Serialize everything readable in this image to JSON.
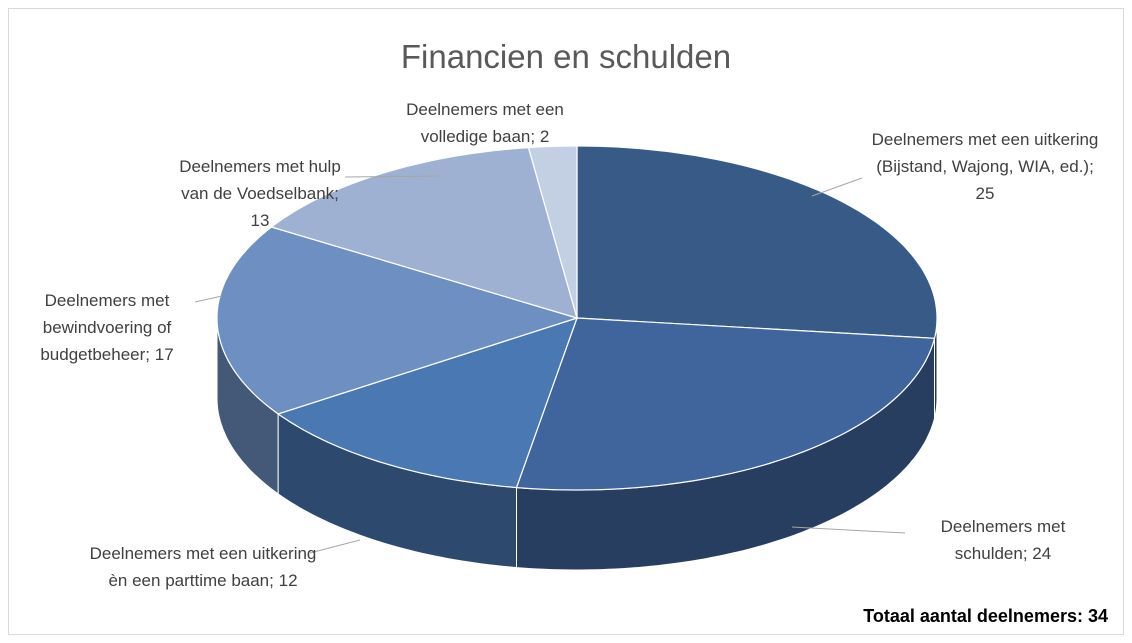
{
  "chart_data": {
    "type": "pie3d",
    "title": "Financien en schulden",
    "categories": [
      "Deelnemers met een uitkering (Bijstand, Wajong, WIA, ed.);",
      "Deelnemers met schulden;",
      "Deelnemers met een uitkering èn een parttime baan;",
      "Deelnemers met bewindvoering of budgetbeheer;",
      "Deelnemers met hulp van de Voedselbank;",
      "Deelnemers met een volledige baan;"
    ],
    "values": [
      25,
      24,
      12,
      17,
      13,
      2
    ],
    "colors": [
      "#375a87",
      "#3f659c",
      "#4a78b3",
      "#6e8fc2",
      "#9eb1d3",
      "#c3cfe2"
    ],
    "annotation": "Totaal aantal deelnemers: 34"
  }
}
